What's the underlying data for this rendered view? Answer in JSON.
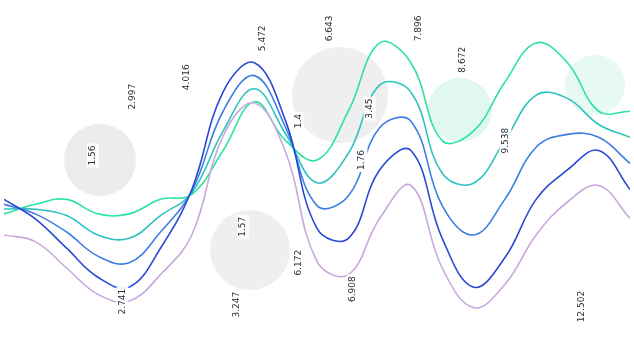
{
  "chart_data": {
    "type": "line",
    "x": [
      0,
      5,
      10,
      15,
      20,
      25,
      30,
      35,
      40,
      45,
      50,
      55,
      60,
      65,
      70,
      75,
      80,
      85,
      90,
      95,
      100
    ],
    "xlim": [
      0,
      100
    ],
    "ylim": [
      0,
      100
    ],
    "grid": false,
    "tick_labels": false,
    "series": [
      {
        "color": "#c9a8dc",
        "values": [
          30,
          28,
          20,
          12,
          10,
          18,
          30,
          60,
          70,
          55,
          22,
          18,
          35,
          45,
          20,
          8,
          15,
          30,
          40,
          45,
          35
        ]
      },
      {
        "color": "#2a48d6",
        "values": [
          40.8,
          34.9,
          26.0,
          17.2,
          14.2,
          26.0,
          43.8,
          73.4,
          82.2,
          64.5,
          32.0,
          29.0,
          49.7,
          55.6,
          29.0,
          14.2,
          23.1,
          40.8,
          49.7,
          55.6,
          43.8
        ]
      },
      {
        "color": "#3b7fe2",
        "values": [
          39.3,
          36.4,
          30.9,
          23.6,
          21.6,
          30.9,
          43.3,
          67.5,
          78.3,
          62.5,
          38.9,
          41.8,
          62.5,
          64.5,
          38.9,
          30.0,
          40.8,
          56.6,
          60.5,
          59.6,
          51.7
        ]
      },
      {
        "color": "#2cc2bf",
        "values": [
          37.9,
          37.8,
          35.9,
          30.0,
          29.0,
          35.9,
          42.8,
          61.5,
          74.3,
          60.6,
          45.8,
          54.7,
          75.4,
          73.3,
          48.7,
          45.7,
          58.6,
          72.4,
          71.4,
          63.5,
          59.6
        ]
      },
      {
        "color": "#2ee3a0",
        "values": [
          36.4,
          39.3,
          40.8,
          36.4,
          36.4,
          40.8,
          42.3,
          55.6,
          70.4,
          58.6,
          52.7,
          67.5,
          88.2,
          82.2,
          58.6,
          61.5,
          76.3,
          88.2,
          82.2,
          67.5,
          67.5
        ]
      }
    ],
    "annotations": [
      {
        "text": "2.997",
        "x": 20.5,
        "y": 71.9
      },
      {
        "text": "4.016",
        "x": 29.2,
        "y": 77.8
      },
      {
        "text": "5.472",
        "x": 41.3,
        "y": 89.6
      },
      {
        "text": "6.643",
        "x": 52.1,
        "y": 92.6
      },
      {
        "text": "7.896",
        "x": 66.2,
        "y": 92.6
      },
      {
        "text": "9.538",
        "x": 80.1,
        "y": 58.6
      },
      {
        "text": "1.56",
        "x": 14.2,
        "y": 54.1
      },
      {
        "text": "2.741",
        "x": 18.9,
        "y": 9.8
      },
      {
        "text": "3.247",
        "x": 37.1,
        "y": 8.9
      },
      {
        "text": "6.172",
        "x": 47.0,
        "y": 21.6
      },
      {
        "text": "6.908",
        "x": 55.7,
        "y": 13.6
      },
      {
        "text": "12.502",
        "x": 92.3,
        "y": 8.3
      },
      {
        "text": "8.672",
        "x": 73.3,
        "y": 83.1
      },
      {
        "text": "1.4",
        "x": 47.0,
        "y": 64.5
      },
      {
        "text": "3.45",
        "x": 58.4,
        "y": 68.3
      },
      {
        "text": "1.76",
        "x": 57.1,
        "y": 52.7
      },
      {
        "text": "1.57",
        "x": 38.2,
        "y": 32.5
      }
    ]
  }
}
